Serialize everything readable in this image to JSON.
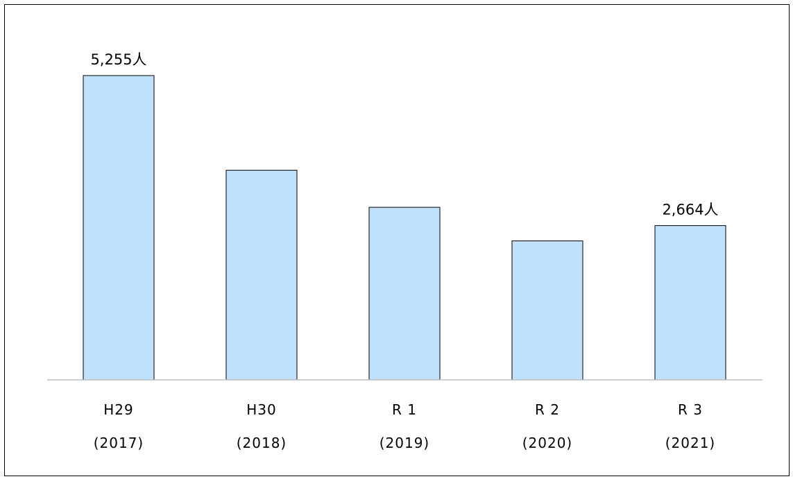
{
  "chart_data": {
    "type": "bar",
    "categories": [
      "H29 (2017)",
      "H30 (2018)",
      "R 1 (2019)",
      "R 2 (2020)",
      "R 3 (2021)"
    ],
    "category_lines": [
      [
        "H29",
        "(2017)"
      ],
      [
        "H30",
        "(2018)"
      ],
      [
        "R 1",
        "(2019)"
      ],
      [
        "R 2",
        "(2020)"
      ],
      [
        "R 3",
        "(2021)"
      ]
    ],
    "values": [
      5255,
      3620,
      2980,
      2400,
      2664
    ],
    "data_labels": [
      "5,255人",
      "",
      "",
      "",
      "2,664人"
    ],
    "title": "",
    "xlabel": "",
    "ylabel": "",
    "ylim": [
      0,
      5255
    ],
    "grid": false,
    "legend": "none",
    "colors": {
      "bar_fill": "#bfe1fb",
      "bar_stroke": "#000000",
      "axis": "#bfbfbf"
    }
  }
}
